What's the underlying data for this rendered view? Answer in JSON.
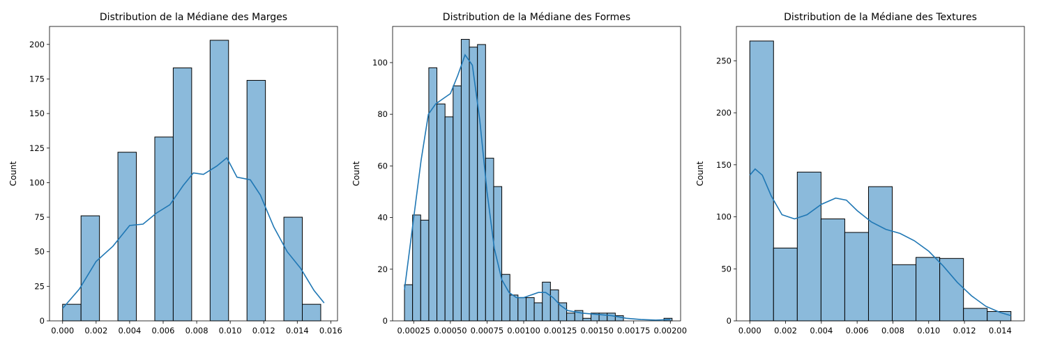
{
  "colors": {
    "bar_fill": "#8bbadb",
    "bar_edge": "#000000",
    "kde": "#1f77b4"
  },
  "chart_data": [
    {
      "type": "bar",
      "title": "Distribution de la Médiane des Marges",
      "xlabel": "",
      "ylabel": "Count",
      "xlim": [
        -0.00078,
        0.0164
      ],
      "ylim": [
        0,
        213
      ],
      "xticks": [
        "0.000",
        "0.002",
        "0.004",
        "0.006",
        "0.008",
        "0.010",
        "0.012",
        "0.014",
        "0.016"
      ],
      "xtick_values": [
        0,
        0.002,
        0.004,
        0.006,
        0.008,
        0.01,
        0.012,
        0.014,
        0.016
      ],
      "yticks": [
        "0",
        "25",
        "50",
        "75",
        "100",
        "125",
        "150",
        "175",
        "200"
      ],
      "ytick_values": [
        0,
        25,
        50,
        75,
        100,
        125,
        150,
        175,
        200
      ],
      "bins": {
        "start": 0.0,
        "width": 0.0011,
        "counts": [
          12,
          76,
          0,
          122,
          0,
          133,
          183,
          0,
          203,
          0,
          174,
          0,
          75,
          12
        ]
      },
      "kde": {
        "x": [
          0,
          0.001,
          0.002,
          0.003,
          0.004,
          0.0048,
          0.0056,
          0.0064,
          0.0072,
          0.0078,
          0.0084,
          0.0092,
          0.0098,
          0.0104,
          0.0112,
          0.0118,
          0.0126,
          0.0134,
          0.0142,
          0.015,
          0.0156
        ],
        "y": [
          9,
          23,
          43,
          54,
          69,
          70,
          78,
          84,
          98,
          107,
          106,
          112,
          118,
          104,
          102,
          91,
          68,
          50,
          38,
          22,
          13
        ]
      }
    },
    {
      "type": "bar",
      "title": "Distribution de la Médiane des Formes",
      "xlabel": "",
      "ylabel": "Count",
      "xlim": [
        0.000106,
        0.00207
      ],
      "ylim": [
        0,
        114
      ],
      "xticks": [
        "0.00025",
        "0.00050",
        "0.00075",
        "0.00100",
        "0.00125",
        "0.00150",
        "0.00175",
        "0.00200"
      ],
      "xtick_values": [
        0.00025,
        0.0005,
        0.00075,
        0.001,
        0.00125,
        0.0015,
        0.00175,
        0.002
      ],
      "yticks": [
        "0",
        "20",
        "40",
        "60",
        "80",
        "100"
      ],
      "ytick_values": [
        0,
        20,
        40,
        60,
        80,
        100
      ],
      "bins": {
        "start": 0.000187,
        "width": 5.53e-05,
        "counts": [
          14,
          41,
          39,
          98,
          84,
          79,
          91,
          109,
          106,
          107,
          63,
          52,
          18,
          10,
          9,
          9,
          7,
          15,
          12,
          7,
          3,
          4,
          1,
          3,
          3,
          3,
          2,
          0,
          0,
          0,
          0,
          0,
          1
        ]
      },
      "kde": {
        "x": [
          0.000187,
          0.00025,
          0.0003,
          0.00035,
          0.0004,
          0.00045,
          0.0005,
          0.00055,
          0.0006,
          0.00065,
          0.0007,
          0.00075,
          0.0008,
          0.00085,
          0.0009,
          0.00095,
          0.001,
          0.00105,
          0.0011,
          0.00115,
          0.0012,
          0.00125,
          0.0013,
          0.0014,
          0.0015,
          0.0016,
          0.0017,
          0.0018,
          0.0019,
          0.002
        ],
        "y": [
          12,
          40,
          62,
          80,
          84,
          86,
          88,
          95,
          103,
          99,
          78,
          50,
          28,
          16,
          11,
          9,
          9,
          10,
          11,
          11,
          9,
          6,
          4,
          3,
          2.5,
          2,
          1,
          0.5,
          0.3,
          0.5
        ]
      }
    },
    {
      "type": "bar",
      "title": "Distribution de la Médiane des Textures",
      "xlabel": "",
      "ylabel": "Count",
      "xlim": [
        -0.00075,
        0.01535
      ],
      "ylim": [
        0,
        283
      ],
      "xticks": [
        "0.000",
        "0.002",
        "0.004",
        "0.006",
        "0.008",
        "0.010",
        "0.012",
        "0.014"
      ],
      "xtick_values": [
        0,
        0.002,
        0.004,
        0.006,
        0.008,
        0.01,
        0.012,
        0.014
      ],
      "yticks": [
        "0",
        "50",
        "100",
        "150",
        "200",
        "250"
      ],
      "ytick_values": [
        0,
        50,
        100,
        150,
        200,
        250
      ],
      "bins": {
        "start": 0.0,
        "width": 0.001,
        "widths_note": "",
        "counts": [
          269,
          70,
          143,
          98,
          85,
          129,
          54,
          61,
          60,
          12,
          9
        ]
      },
      "kde": {
        "x": [
          0,
          0.0003,
          0.0007,
          0.0012,
          0.0018,
          0.0025,
          0.0032,
          0.004,
          0.0048,
          0.0054,
          0.006,
          0.0068,
          0.0076,
          0.0084,
          0.0092,
          0.01,
          0.0108,
          0.0116,
          0.0124,
          0.0132,
          0.014,
          0.0146
        ],
        "y": [
          140,
          146,
          140,
          120,
          102,
          98,
          102,
          112,
          118,
          116,
          106,
          95,
          88,
          84,
          77,
          67,
          53,
          37,
          24,
          14,
          8,
          5
        ]
      }
    }
  ]
}
